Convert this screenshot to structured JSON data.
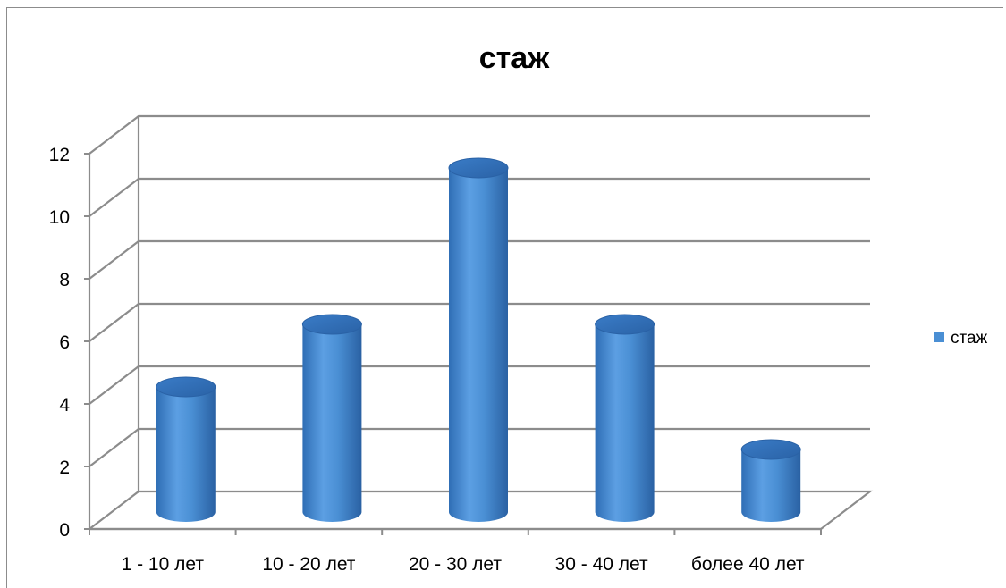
{
  "chart_data": {
    "type": "bar",
    "style": "3d-cylinder",
    "title": "стаж",
    "categories": [
      "1 - 10 лет",
      "10 - 20 лет",
      "20 - 30 лет",
      "30 - 40 лет",
      "более 40 лет"
    ],
    "series": [
      {
        "name": "стаж",
        "values": [
          4,
          6,
          11,
          6,
          2
        ],
        "color": "#4a8fd4"
      }
    ],
    "yticks": [
      "0",
      "2",
      "4",
      "6",
      "8",
      "10",
      "12"
    ],
    "ylim": [
      0,
      12
    ],
    "grid": true,
    "legend_position": "right"
  }
}
